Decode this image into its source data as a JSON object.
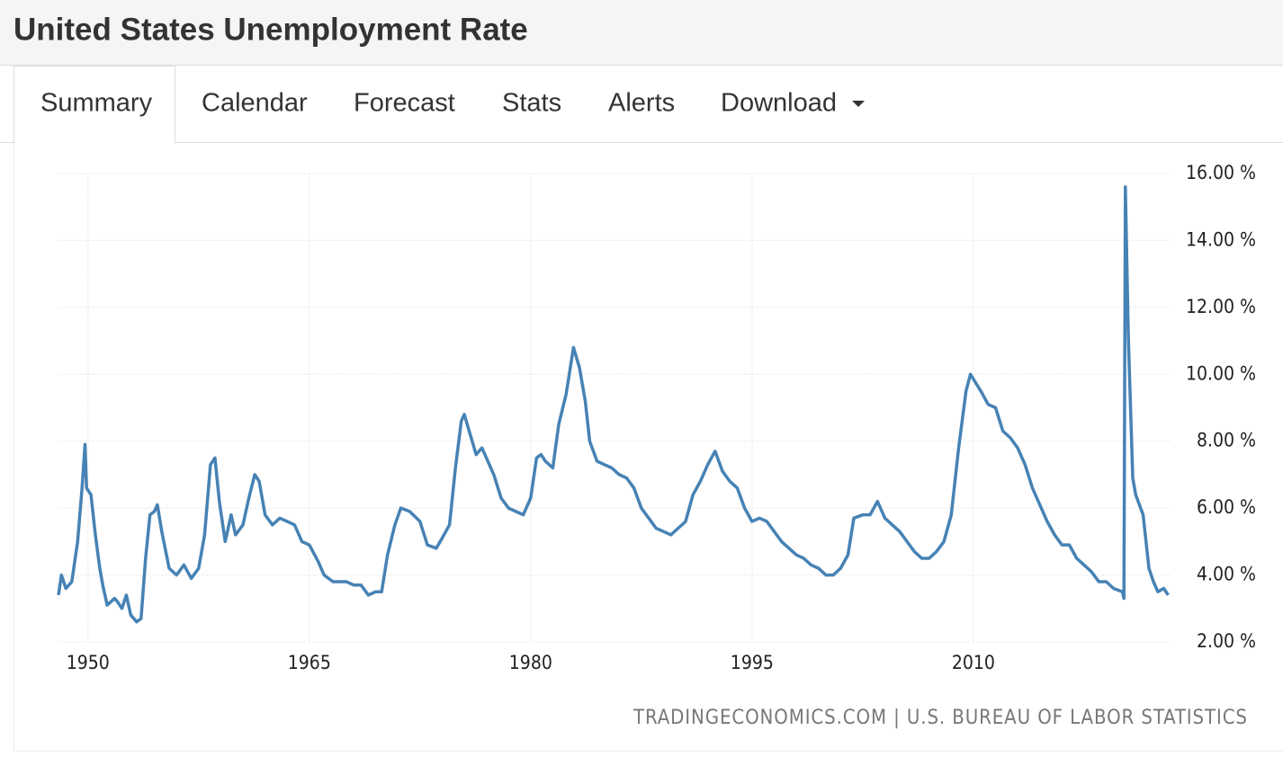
{
  "header": {
    "title": "United States Unemployment Rate"
  },
  "tabs": [
    "Summary",
    "Calendar",
    "Forecast",
    "Stats",
    "Alerts",
    "Download"
  ],
  "chart_data": {
    "type": "line",
    "color": "#4682b4",
    "grid": true,
    "source": "TRADINGECONOMICS.COM | U.S. BUREAU OF LABOR STATISTICS",
    "xlim": [
      1948,
      2023.3
    ],
    "xticks": [
      1950,
      1965,
      1980,
      1995,
      2010
    ],
    "ylim": [
      2,
      16
    ],
    "yticks": [
      {
        "value": 2,
        "label": "2.00 %"
      },
      {
        "value": 4,
        "label": "4.00 %"
      },
      {
        "value": 6,
        "label": "6.00 %"
      },
      {
        "value": 8,
        "label": "8.00 %"
      },
      {
        "value": 10,
        "label": "10.00 %"
      },
      {
        "value": 12,
        "label": "12.00 %"
      },
      {
        "value": 14,
        "label": "14.00 %"
      },
      {
        "value": 16,
        "label": "16.00 %"
      }
    ],
    "x": [
      1948.0,
      1948.2,
      1948.5,
      1948.9,
      1949.3,
      1949.6,
      1949.8,
      1949.9,
      1950.2,
      1950.5,
      1950.8,
      1951.0,
      1951.3,
      1951.8,
      1952.0,
      1952.3,
      1952.6,
      1952.9,
      1953.3,
      1953.6,
      1953.9,
      1954.2,
      1954.5,
      1954.7,
      1955.0,
      1955.5,
      1956.0,
      1956.5,
      1957.0,
      1957.5,
      1957.9,
      1958.3,
      1958.6,
      1958.9,
      1959.3,
      1959.7,
      1960.0,
      1960.5,
      1960.9,
      1961.3,
      1961.6,
      1962.0,
      1962.5,
      1963.0,
      1963.5,
      1964.0,
      1964.5,
      1965.0,
      1965.6,
      1966.0,
      1966.6,
      1967.0,
      1967.5,
      1968.0,
      1968.5,
      1969.0,
      1969.5,
      1969.9,
      1970.3,
      1970.8,
      1971.2,
      1971.8,
      1972.5,
      1973.0,
      1973.6,
      1974.0,
      1974.5,
      1974.9,
      1975.3,
      1975.5,
      1975.9,
      1976.3,
      1976.7,
      1977.0,
      1977.5,
      1978.0,
      1978.5,
      1979.0,
      1979.5,
      1980.0,
      1980.4,
      1980.7,
      1981.0,
      1981.5,
      1981.9,
      1982.4,
      1982.9,
      1983.3,
      1983.7,
      1984.0,
      1984.5,
      1985.0,
      1985.5,
      1986.0,
      1986.5,
      1987.0,
      1987.5,
      1988.0,
      1988.5,
      1989.0,
      1989.5,
      1990.0,
      1990.5,
      1991.0,
      1991.5,
      1992.0,
      1992.5,
      1993.0,
      1993.5,
      1994.0,
      1994.5,
      1995.0,
      1995.5,
      1996.0,
      1996.5,
      1997.0,
      1997.5,
      1998.0,
      1998.5,
      1999.0,
      1999.5,
      2000.0,
      2000.5,
      2001.0,
      2001.5,
      2001.9,
      2002.5,
      2003.0,
      2003.5,
      2004.0,
      2004.5,
      2005.0,
      2005.5,
      2006.0,
      2006.5,
      2007.0,
      2007.5,
      2008.0,
      2008.5,
      2009.0,
      2009.5,
      2009.8,
      2010.5,
      2011.0,
      2011.5,
      2012.0,
      2012.5,
      2013.0,
      2013.5,
      2014.0,
      2014.5,
      2015.0,
      2015.5,
      2016.0,
      2016.5,
      2017.0,
      2017.5,
      2018.0,
      2018.5,
      2019.0,
      2019.5,
      2020.1,
      2020.2,
      2020.3,
      2020.5,
      2020.8,
      2021.0,
      2021.5,
      2021.9,
      2022.2,
      2022.5,
      2022.9,
      2023.2
    ],
    "values": [
      3.4,
      4.0,
      3.6,
      3.8,
      5.0,
      6.6,
      7.9,
      6.6,
      6.4,
      5.2,
      4.2,
      3.7,
      3.1,
      3.3,
      3.2,
      3.0,
      3.4,
      2.8,
      2.6,
      2.7,
      4.5,
      5.8,
      5.9,
      6.1,
      5.3,
      4.2,
      4.0,
      4.3,
      3.9,
      4.2,
      5.2,
      7.3,
      7.5,
      6.2,
      5.0,
      5.8,
      5.2,
      5.5,
      6.3,
      7.0,
      6.8,
      5.8,
      5.5,
      5.7,
      5.6,
      5.5,
      5.0,
      4.9,
      4.4,
      4.0,
      3.8,
      3.8,
      3.8,
      3.7,
      3.7,
      3.4,
      3.5,
      3.5,
      4.6,
      5.5,
      6.0,
      5.9,
      5.6,
      4.9,
      4.8,
      5.1,
      5.5,
      7.2,
      8.6,
      8.8,
      8.2,
      7.6,
      7.8,
      7.5,
      7.0,
      6.3,
      6.0,
      5.9,
      5.8,
      6.3,
      7.5,
      7.6,
      7.4,
      7.2,
      8.5,
      9.4,
      10.8,
      10.2,
      9.2,
      8.0,
      7.4,
      7.3,
      7.2,
      7.0,
      6.9,
      6.6,
      6.0,
      5.7,
      5.4,
      5.3,
      5.2,
      5.4,
      5.6,
      6.4,
      6.8,
      7.3,
      7.7,
      7.1,
      6.8,
      6.6,
      6.0,
      5.6,
      5.7,
      5.6,
      5.3,
      5.0,
      4.8,
      4.6,
      4.5,
      4.3,
      4.2,
      4.0,
      4.0,
      4.2,
      4.6,
      5.7,
      5.8,
      5.8,
      6.2,
      5.7,
      5.5,
      5.3,
      5.0,
      4.7,
      4.5,
      4.5,
      4.7,
      5.0,
      5.8,
      7.8,
      9.5,
      10.0,
      9.5,
      9.1,
      9.0,
      8.3,
      8.1,
      7.8,
      7.3,
      6.6,
      6.1,
      5.6,
      5.2,
      4.9,
      4.9,
      4.5,
      4.3,
      4.1,
      3.8,
      3.8,
      3.6,
      3.5,
      3.3,
      15.6,
      11.1,
      6.9,
      6.4,
      5.8,
      4.2,
      3.8,
      3.5,
      3.6,
      3.4
    ]
  }
}
